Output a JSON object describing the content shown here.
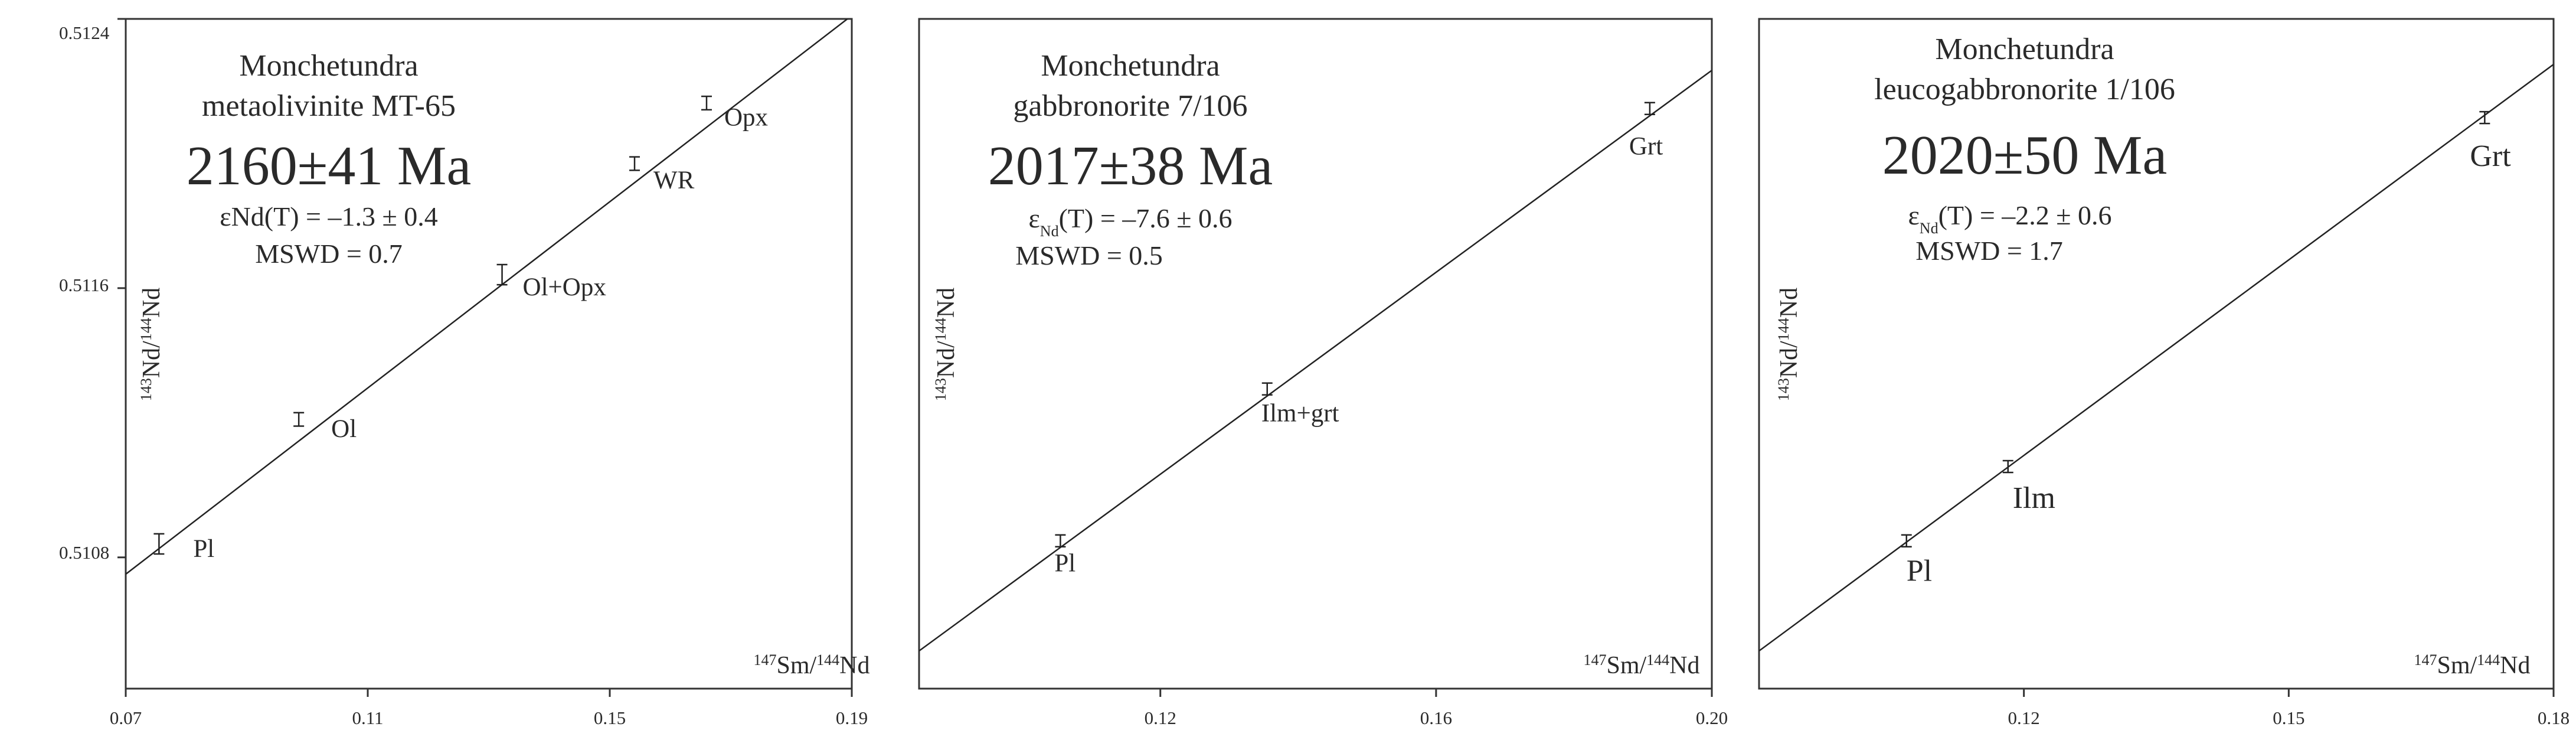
{
  "chart_data": [
    {
      "type": "scatter",
      "title_lines": [
        "Monchetundra",
        "metaolivinite MT-65"
      ],
      "age": "2160±41 Ma",
      "eps_prefix": "εNd(T) = ",
      "eps_sub": "",
      "eps_value": "–1.3 ± 0.4",
      "mswd": "MSWD  = 0.7",
      "xlabel": {
        "pre": "147",
        "mid": "Sm/",
        "pre2": "144",
        "post": "Nd"
      },
      "ylabel": {
        "pre": "143",
        "mid": "Nd/",
        "pre2": "144",
        "post": "Nd"
      },
      "xlim": [
        0.07,
        0.19
      ],
      "ylim": [
        0.51041,
        0.5124
      ],
      "xticks": [
        0.07,
        0.11,
        0.15,
        0.19
      ],
      "xtick_labels": [
        "0.07",
        "0.11",
        "0.15",
        "0.19"
      ],
      "yticks": [
        0.5108,
        0.5116,
        0.5124
      ],
      "ytick_labels": [
        "0.5108",
        "0.5116",
        "0.5124"
      ],
      "isochron": {
        "x": [
          0.07,
          0.19
        ],
        "y": [
          0.51075,
          0.51241
        ]
      },
      "points": [
        {
          "label": "Pl",
          "x": 0.0755,
          "y": 0.51084,
          "err": 3e-05
        },
        {
          "label": "Ol",
          "x": 0.0986,
          "y": 0.51121,
          "err": 2e-05
        },
        {
          "label": "Ol+Opx",
          "x": 0.1322,
          "y": 0.51164,
          "err": 3e-05
        },
        {
          "label": "WR",
          "x": 0.1541,
          "y": 0.51197,
          "err": 2e-05
        },
        {
          "label": "Opx",
          "x": 0.166,
          "y": 0.51215,
          "err": 2e-05
        }
      ]
    },
    {
      "type": "scatter",
      "title_lines": [
        "Monchetundra",
        "gabbronorite 7/106"
      ],
      "age": "2017±38 Ma",
      "eps_prefix": "ε",
      "eps_sub": "Nd",
      "eps_value": "(T) = –7.6 ± 0.6",
      "mswd": "MSWD = 0.5",
      "xlabel": {
        "pre": "147",
        "mid": "Sm/",
        "pre2": "144",
        "post": "Nd"
      },
      "ylabel": {
        "pre": "143",
        "mid": "Nd/",
        "pre2": "144",
        "post": "Nd"
      },
      "xlim": [
        0.085,
        0.2
      ],
      "xticks": [
        0.12,
        0.16,
        0.2
      ],
      "xtick_labels": [
        "0.12",
        "0.16",
        "0.20"
      ],
      "isochron": {
        "x": [
          0.085,
          0.2
        ],
        "y": [
          0.0563,
          0.9232
        ]
      },
      "points": [
        {
          "label": "Pl",
          "x": 0.1055,
          "y": 0.2207
        },
        {
          "label": "Ilm+grt",
          "x": 0.1355,
          "y": 0.4474
        },
        {
          "label": "Grt",
          "x": 0.191,
          "y": 0.8662
        }
      ]
    },
    {
      "type": "scatter",
      "title_lines": [
        "Monchetundra",
        "leucogabbronorite 1/106"
      ],
      "age": "2020±50 Ma",
      "eps_prefix": "ε",
      "eps_sub": "Nd",
      "eps_value": "(T) = –2.2 ± 0.6",
      "mswd": "MSWD = 1.7",
      "xlabel": {
        "pre": "147",
        "mid": "Sm/",
        "pre2": "144",
        "post": "Nd"
      },
      "ylabel": {
        "pre": "143",
        "mid": "Nd/",
        "pre2": "144",
        "post": "Nd"
      },
      "xlim": [
        0.09,
        0.18
      ],
      "xticks": [
        0.12,
        0.15,
        0.18
      ],
      "xtick_labels": [
        "0.12",
        "0.15",
        "0.18"
      ],
      "isochron": {
        "x": [
          0.09,
          0.18
        ],
        "y": [
          0.0563,
          0.9321
        ]
      },
      "points": [
        {
          "label": "Pl",
          "x": 0.1067,
          "y": 0.2207
        },
        {
          "label": "Ilm",
          "x": 0.1182,
          "y": 0.3316
        },
        {
          "label": "Grt",
          "x": 0.1722,
          "y": 0.8526
        }
      ]
    }
  ]
}
